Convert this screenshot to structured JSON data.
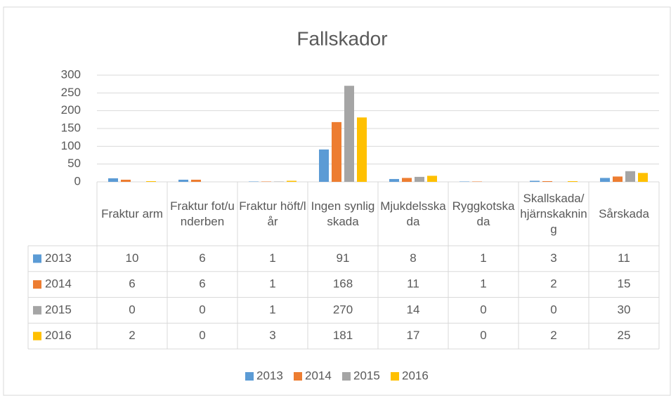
{
  "chart_data": {
    "type": "bar",
    "title": "Fallskador",
    "categories": [
      "Fraktur arm",
      "Fraktur fot/underben",
      "Fraktur höft/lår",
      "Ingen synlig skada",
      "Mjukdelsskada",
      "Ryggkotskada",
      "Skallskada/hjärnskakning",
      "Sårskada"
    ],
    "series": [
      {
        "name": "2013",
        "color": "#5b9bd5",
        "values": [
          10,
          6,
          1,
          91,
          8,
          1,
          3,
          11
        ]
      },
      {
        "name": "2014",
        "color": "#ed7d31",
        "values": [
          6,
          6,
          1,
          168,
          11,
          1,
          2,
          15
        ]
      },
      {
        "name": "2015",
        "color": "#a5a5a5",
        "values": [
          0,
          0,
          1,
          270,
          14,
          0,
          0,
          30
        ]
      },
      {
        "name": "2016",
        "color": "#ffc000",
        "values": [
          2,
          0,
          3,
          181,
          17,
          0,
          2,
          25
        ]
      }
    ],
    "ylim": [
      0,
      300
    ],
    "yticks": [
      0,
      50,
      100,
      150,
      200,
      250,
      300
    ],
    "grid": true,
    "legend": "bottom"
  }
}
